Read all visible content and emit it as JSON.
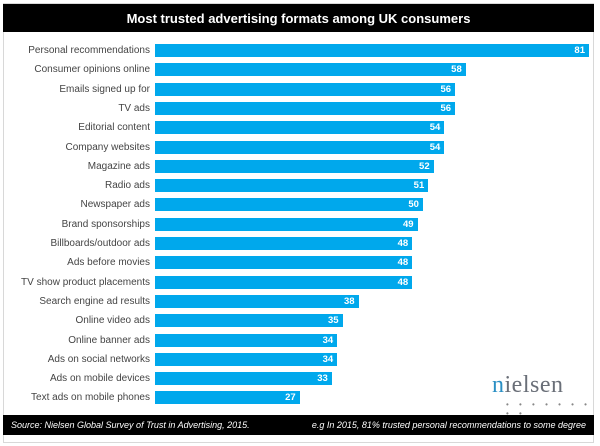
{
  "header": {
    "title": "Most trusted advertising formats among UK consumers"
  },
  "footer": {
    "source": "Source: Nielsen Global Survey of Trust in Advertising, 2015.",
    "note": "e.g In 2015, 81% trusted personal recommendations to some degree"
  },
  "logo": {
    "text_first": "n",
    "text_rest": "ielsen",
    "dots": "• • • • • • • • •"
  },
  "colors": {
    "bar": "#00a8ec",
    "title_bg": "#000000"
  },
  "chart_data": {
    "type": "bar",
    "orientation": "horizontal",
    "title": "Most trusted advertising formats among UK consumers",
    "xlabel": "",
    "ylabel": "",
    "grid": false,
    "legend": null,
    "categories": [
      "Personal recommendations",
      "Consumer opinions online",
      "Emails signed up for",
      "TV ads",
      "Editorial content",
      "Company websites",
      "Magazine ads",
      "Radio ads",
      "Newspaper ads",
      "Brand sponsorships",
      "Billboards/outdoor ads",
      "Ads before movies",
      "TV show product placements",
      "Search engine ad results",
      "Online video ads",
      "Online banner ads",
      "Ads on social networks",
      "Ads on mobile devices",
      "Text ads on mobile phones"
    ],
    "values": [
      81,
      58,
      56,
      56,
      54,
      54,
      52,
      51,
      50,
      49,
      48,
      48,
      48,
      38,
      35,
      34,
      34,
      33,
      27
    ],
    "xlim": [
      0,
      81
    ],
    "annotations": [
      "Source: Nielsen Global Survey of Trust in Advertising, 2015.",
      "e.g In 2015, 81% trusted personal recommendations to some degree"
    ]
  }
}
